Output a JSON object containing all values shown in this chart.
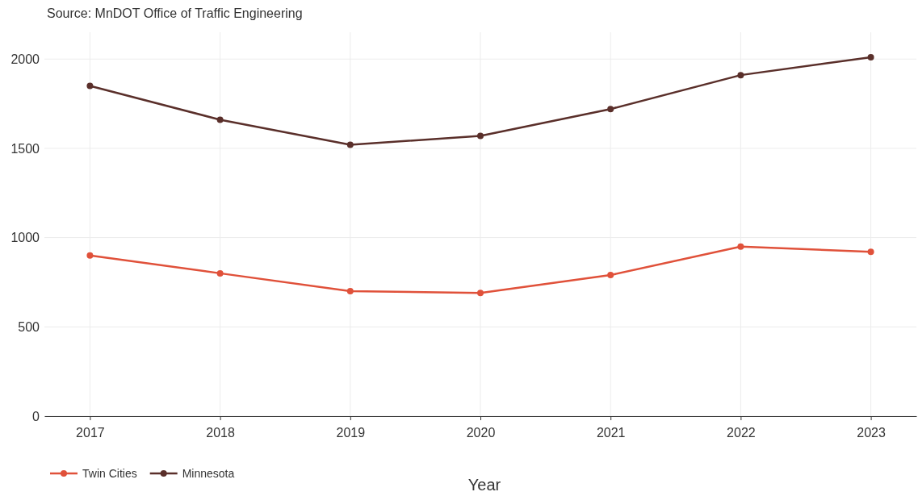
{
  "chart_data": {
    "type": "line",
    "xlabel": "Year",
    "annotations": [
      "Source: MnDOT Office of Traffic Engineering"
    ],
    "categories": [
      "2017",
      "2018",
      "2019",
      "2020",
      "2021",
      "2022",
      "2023"
    ],
    "series": [
      {
        "name": "Twin Cities",
        "color": "#e0513a",
        "values": [
          900,
          800,
          700,
          690,
          790,
          950,
          920
        ]
      },
      {
        "name": "Minnesota",
        "color": "#5a2f2a",
        "values": [
          1850,
          1660,
          1520,
          1570,
          1720,
          1910,
          2010
        ]
      }
    ],
    "ylim": [
      0,
      2150
    ],
    "yticks": [
      0,
      500,
      1000,
      1500,
      2000
    ],
    "grid": true,
    "legend": "bottom left",
    "marker": "circle",
    "line_style": "solid"
  }
}
